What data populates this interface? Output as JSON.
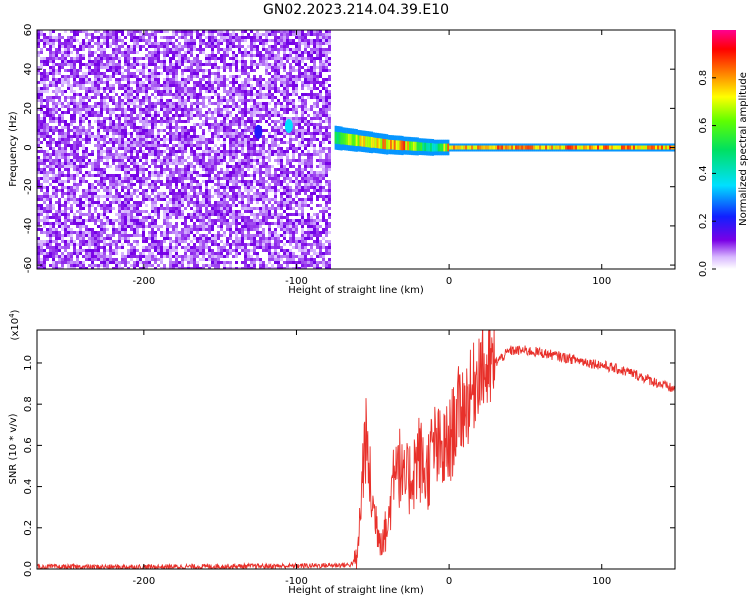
{
  "title": "GN02.2023.214.04.39.E10",
  "chart_data": [
    {
      "type": "heatmap",
      "xlabel": "Height of straight line (km)",
      "ylabel": "Frequency (Hz)",
      "xlim": [
        -270,
        148
      ],
      "ylim": [
        -62,
        60
      ],
      "xticks": [
        -200,
        -100,
        0,
        100
      ],
      "yticks": [
        -60,
        -40,
        -20,
        0,
        20,
        40,
        60
      ],
      "noise_region_x": [
        -270,
        -78
      ],
      "signal_band": [
        {
          "x": -75,
          "y": 5,
          "amp": 0.55
        },
        {
          "x": -70,
          "y": 4.5,
          "amp": 0.75
        },
        {
          "x": -60,
          "y": 3.5,
          "amp": 0.8
        },
        {
          "x": -50,
          "y": 2.5,
          "amp": 0.85
        },
        {
          "x": -40,
          "y": 1.5,
          "amp": 0.85
        },
        {
          "x": -30,
          "y": 1,
          "amp": 0.9
        },
        {
          "x": -20,
          "y": 0.5,
          "amp": 0.6
        },
        {
          "x": -10,
          "y": 0,
          "amp": 0.5
        },
        {
          "x": 0,
          "y": 0,
          "amp": 0.9
        },
        {
          "x": 148,
          "y": 0,
          "amp": 0.9
        }
      ],
      "isolated_blobs": [
        {
          "x": -105,
          "y": 11,
          "amp": 0.35
        },
        {
          "x": -125,
          "y": 8,
          "amp": 0.2
        }
      ],
      "colorbar": {
        "label": "Normalized spectral amplitude",
        "ticks": [
          "0.0",
          "0.2",
          "0.4",
          "0.6",
          "0.8"
        ],
        "range": [
          0,
          1
        ]
      }
    },
    {
      "type": "line",
      "xlabel": "Height of straight line (km)",
      "ylabel": "SNR (10 * v/v)",
      "yscale_label": "(x10",
      "yscale_exp": "4",
      "yscale_close": ")",
      "xlim": [
        -270,
        148
      ],
      "ylim": [
        0,
        1.16
      ],
      "xticks": [
        -200,
        -100,
        0,
        100
      ],
      "yticks": [
        "0.0",
        "0.2",
        "0.4",
        "0.6",
        "0.8",
        "1.0"
      ],
      "color": "#e8302a",
      "series": [
        {
          "x": [
            -270,
            -200,
            -100,
            -65,
            -60,
            -58,
            -55,
            -50,
            -45,
            -40,
            -35,
            -30,
            -25,
            -20,
            -15,
            -10,
            -5,
            0,
            5,
            10,
            15,
            20,
            25,
            30,
            40,
            50,
            60,
            80,
            100,
            120,
            148
          ],
          "y": [
            0.01,
            0.01,
            0.015,
            0.02,
            0.05,
            0.3,
            0.65,
            0.3,
            0.15,
            0.2,
            0.6,
            0.4,
            0.45,
            0.55,
            0.45,
            0.6,
            0.55,
            0.6,
            0.75,
            0.8,
            0.85,
            1.0,
            0.95,
            1.0,
            1.06,
            1.06,
            1.05,
            1.02,
            0.99,
            0.95,
            0.87
          ]
        }
      ]
    }
  ]
}
